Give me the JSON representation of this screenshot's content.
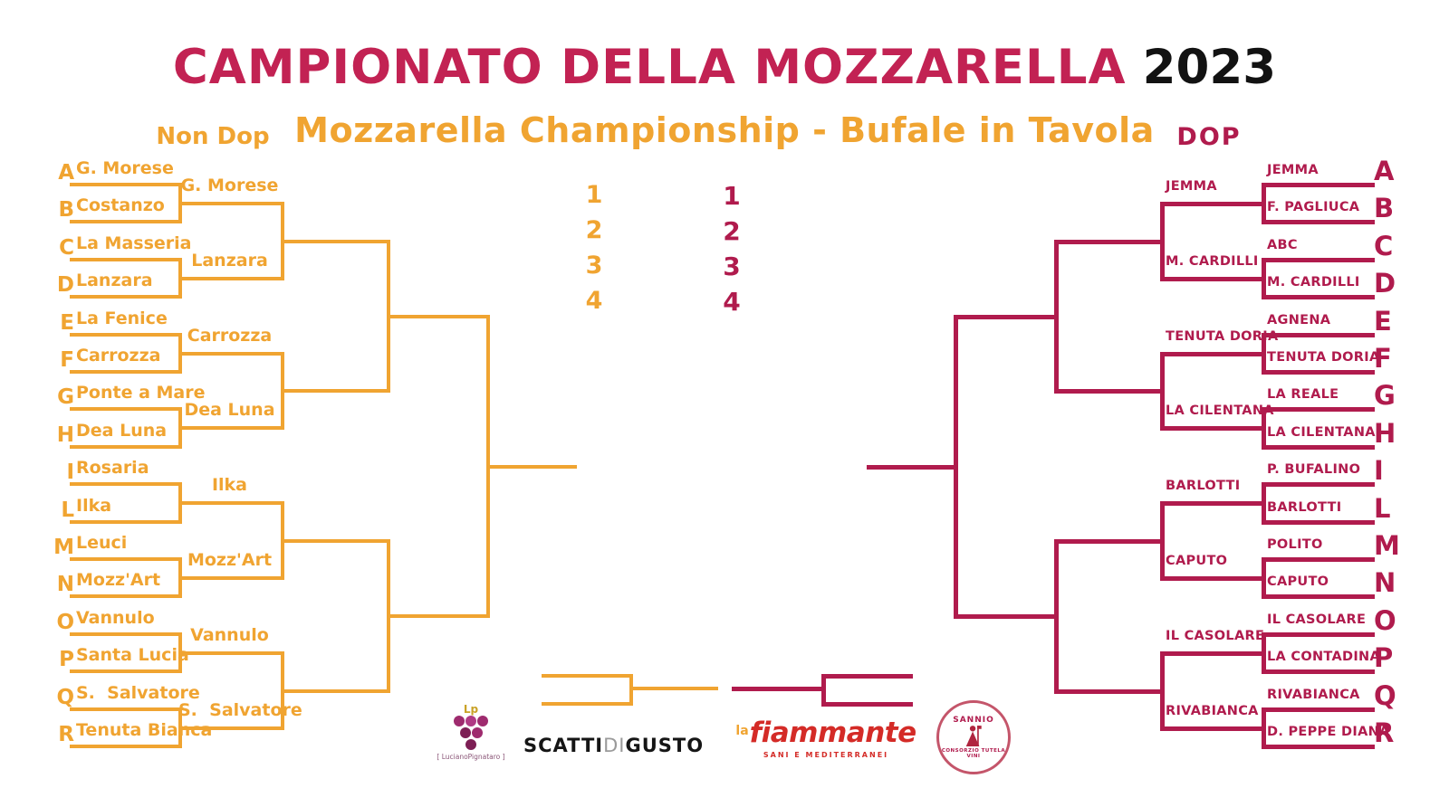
{
  "title": {
    "main": "CAMPIONATO DELLA MOZZARELLA",
    "year": "2023",
    "subtitle": "Mozzarella Championship - Bufale in Tavola"
  },
  "colors": {
    "orange": "#F0A431",
    "crimson": "#B01B4D",
    "title_magenta": "#C22253",
    "black": "#121212"
  },
  "left_bracket": {
    "header": "Non Dop",
    "entrants": [
      {
        "seed": "A",
        "name": "G. Morese"
      },
      {
        "seed": "B",
        "name": "Costanzo"
      },
      {
        "seed": "C",
        "name": "La Masseria"
      },
      {
        "seed": "D",
        "name": "Lanzara"
      },
      {
        "seed": "E",
        "name": "La Fenice"
      },
      {
        "seed": "F",
        "name": "Carrozza"
      },
      {
        "seed": "G",
        "name": "Ponte a Mare"
      },
      {
        "seed": "H",
        "name": "Dea Luna"
      },
      {
        "seed": "I",
        "name": "Rosaria"
      },
      {
        "seed": "L",
        "name": "Ilka"
      },
      {
        "seed": "M",
        "name": "Leuci"
      },
      {
        "seed": "N",
        "name": "Mozz'Art"
      },
      {
        "seed": "O",
        "name": "Vannulo"
      },
      {
        "seed": "P",
        "name": "Santa Lucia"
      },
      {
        "seed": "Q",
        "name": "S.  Salvatore"
      },
      {
        "seed": "R",
        "name": "Tenuta Bianca"
      }
    ],
    "round2_winners": [
      "G. Morese",
      "Lanzara",
      "Carrozza",
      "Dea Luna",
      "Ilka",
      "Mozz'Art",
      "Vannulo",
      "S.  Salvatore"
    ]
  },
  "right_bracket": {
    "header": "DOP",
    "entrants": [
      {
        "seed": "A",
        "name": "JEMMA"
      },
      {
        "seed": "B",
        "name": "F. PAGLIUCA"
      },
      {
        "seed": "C",
        "name": "ABC"
      },
      {
        "seed": "D",
        "name": "M. CARDILLI"
      },
      {
        "seed": "E",
        "name": "AGNENA"
      },
      {
        "seed": "F",
        "name": "TENUTA DORIA"
      },
      {
        "seed": "G",
        "name": "LA REALE"
      },
      {
        "seed": "H",
        "name": "LA CILENTANA"
      },
      {
        "seed": "I",
        "name": "P. BUFALINO"
      },
      {
        "seed": "L",
        "name": "BARLOTTI"
      },
      {
        "seed": "M",
        "name": "POLITO"
      },
      {
        "seed": "N",
        "name": "CAPUTO"
      },
      {
        "seed": "O",
        "name": "IL CASOLARE"
      },
      {
        "seed": "P",
        "name": "LA CONTADINA"
      },
      {
        "seed": "Q",
        "name": "RIVABIANCA"
      },
      {
        "seed": "R",
        "name": "D. PEPPE DIANA"
      }
    ],
    "round2_winners": [
      "JEMMA",
      "M. CARDILLI",
      "TENUTA DORIA",
      "LA CILENTANA",
      "BARLOTTI",
      "CAPUTO",
      "IL CASOLARE",
      "RIVABIANCA"
    ]
  },
  "standings": {
    "non_dop": [
      "1",
      "2",
      "3",
      "4"
    ],
    "dop": [
      "1",
      "2",
      "3",
      "4"
    ]
  },
  "footer_logos": {
    "luciano_pignataro": {
      "monogram": "Lp",
      "caption": "[ LucianoPignataro ]"
    },
    "scatti_di_gusto": {
      "part1": "SCATTI",
      "part2": "DI",
      "part3": "GUSTO"
    },
    "la_fiammante": {
      "prefix": "la",
      "name": "fiammante",
      "tagline": "SANI E MEDITERRANEI"
    },
    "sannio": {
      "top": "SANNIO",
      "bottom": "CONSORZIO TUTELA VINI"
    }
  }
}
